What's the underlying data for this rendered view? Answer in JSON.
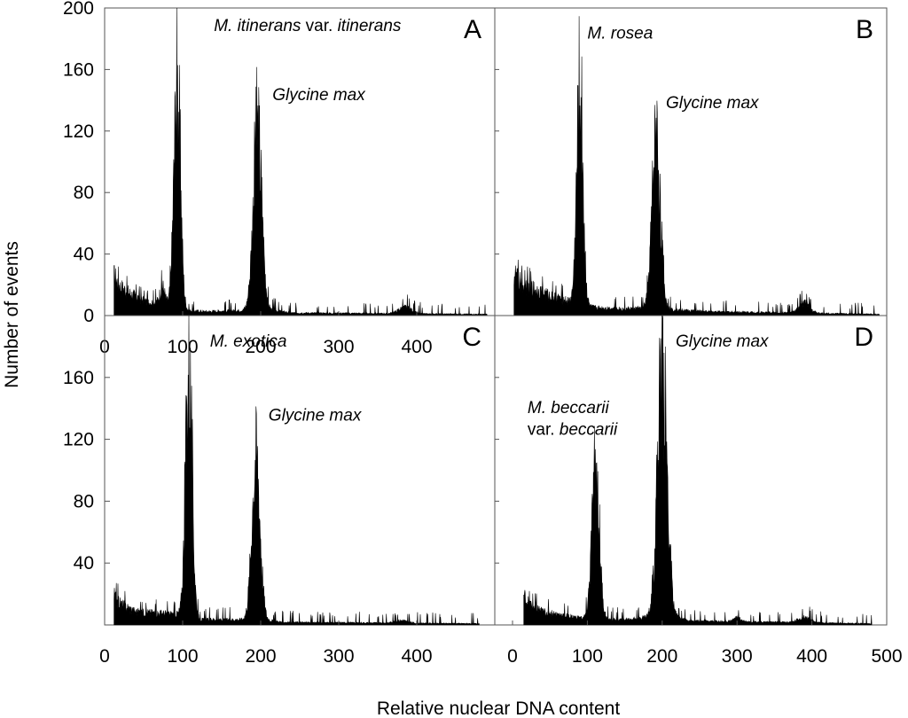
{
  "axes": {
    "xlabel": "Relative nuclear DNA content",
    "ylabel": "Number of events"
  },
  "chart_data": [
    {
      "type": "area",
      "panel": "A",
      "xlim": [
        0,
        500
      ],
      "ylim": [
        0,
        200
      ],
      "x_ticks": [
        "0",
        "100",
        "200",
        "300",
        "400"
      ],
      "y_ticks": [
        "0",
        "40",
        "80",
        "120",
        "160",
        "200"
      ],
      "annotations": [
        {
          "x": 140,
          "y": 185,
          "parts": [
            {
              "text": "M. itinerans",
              "italic": true
            },
            {
              "text": " var. ",
              "italic": false
            },
            {
              "text": "itinerans",
              "italic": true
            }
          ]
        },
        {
          "x": 215,
          "y": 140,
          "parts": [
            {
              "text": "Glycine max",
              "italic": true
            }
          ]
        }
      ],
      "series": [
        {
          "x_range": [
            12,
            490
          ],
          "baseline": [
            [
              12,
              30
            ],
            [
              20,
              22
            ],
            [
              35,
              16
            ],
            [
              55,
              10
            ],
            [
              75,
              10
            ],
            [
              87,
              6
            ],
            [
              100,
              4
            ],
            [
              130,
              3
            ],
            [
              180,
              4
            ],
            [
              215,
              4
            ],
            [
              240,
              2
            ],
            [
              490,
              1
            ]
          ],
          "peaks": [
            {
              "center": 93,
              "height": 172,
              "width": 4.2
            },
            {
              "center": 196,
              "height": 136,
              "width": 5.5
            },
            {
              "center": 74,
              "height": 12,
              "width": 3
            },
            {
              "center": 385,
              "height": 5,
              "width": 8
            }
          ]
        }
      ]
    },
    {
      "type": "area",
      "panel": "B",
      "xlim": [
        0,
        500
      ],
      "ylim": [
        0,
        200
      ],
      "annotations": [
        {
          "x": 100,
          "y": 180,
          "parts": [
            {
              "text": "M. rosea",
              "italic": true
            }
          ]
        },
        {
          "x": 205,
          "y": 135,
          "parts": [
            {
              "text": "Glycine max",
              "italic": true
            }
          ]
        }
      ],
      "series": [
        {
          "x_range": [
            2,
            490
          ],
          "baseline": [
            [
              2,
              32
            ],
            [
              12,
              24
            ],
            [
              30,
              20
            ],
            [
              50,
              15
            ],
            [
              80,
              10
            ],
            [
              90,
              8
            ],
            [
              110,
              6
            ],
            [
              150,
              5
            ],
            [
              185,
              6
            ],
            [
              225,
              4
            ],
            [
              260,
              3
            ],
            [
              490,
              1
            ]
          ],
          "peaks": [
            {
              "center": 90,
              "height": 165,
              "width": 4.2
            },
            {
              "center": 192,
              "height": 130,
              "width": 5.5
            },
            {
              "center": 390,
              "height": 8,
              "width": 7
            }
          ]
        }
      ]
    },
    {
      "type": "area",
      "panel": "C",
      "xlim": [
        0,
        500
      ],
      "ylim": [
        0,
        200
      ],
      "x_ticks": [
        "0",
        "100",
        "200",
        "300",
        "400"
      ],
      "y_ticks": [
        "40",
        "80",
        "120",
        "160"
      ],
      "annotations": [
        {
          "x": 135,
          "y": 180,
          "parts": [
            {
              "text": "M. exotica",
              "italic": true
            }
          ]
        },
        {
          "x": 210,
          "y": 132,
          "parts": [
            {
              "text": "Glycine max",
              "italic": true
            }
          ]
        }
      ],
      "series": [
        {
          "x_range": [
            12,
            480
          ],
          "baseline": [
            [
              12,
              22
            ],
            [
              20,
              16
            ],
            [
              40,
              10
            ],
            [
              70,
              9
            ],
            [
              100,
              8
            ],
            [
              120,
              4
            ],
            [
              160,
              4
            ],
            [
              200,
              4
            ],
            [
              230,
              2
            ],
            [
              480,
              1
            ]
          ],
          "peaks": [
            {
              "center": 108,
              "height": 190,
              "width": 4.2
            },
            {
              "center": 194,
              "height": 125,
              "width": 5.2
            },
            {
              "center": 380,
              "height": 2,
              "width": 8
            }
          ]
        }
      ]
    },
    {
      "type": "area",
      "panel": "D",
      "xlim": [
        0,
        500
      ],
      "ylim": [
        0,
        200
      ],
      "x_ticks": [
        "0",
        "100",
        "200",
        "300",
        "400",
        "500"
      ],
      "annotations": [
        {
          "x": 218,
          "y": 180,
          "parts": [
            {
              "text": "Glycine max",
              "italic": true
            }
          ]
        },
        {
          "x": 20,
          "y": 137,
          "parts": [
            {
              "text": "M. beccarii",
              "italic": true
            }
          ]
        },
        {
          "x": 20,
          "y": 123,
          "parts": [
            {
              "text": "var. ",
              "italic": false
            },
            {
              "text": "beccarii",
              "italic": true
            }
          ]
        }
      ],
      "series": [
        {
          "x_range": [
            15,
            480
          ],
          "baseline": [
            [
              15,
              22
            ],
            [
              22,
              16
            ],
            [
              40,
              10
            ],
            [
              60,
              8
            ],
            [
              80,
              6
            ],
            [
              95,
              5
            ],
            [
              120,
              4
            ],
            [
              150,
              4
            ],
            [
              180,
              6
            ],
            [
              215,
              6
            ],
            [
              240,
              3
            ],
            [
              480,
              1
            ]
          ],
          "peaks": [
            {
              "center": 111,
              "height": 110,
              "width": 5
            },
            {
              "center": 200,
              "height": 190,
              "width": 6.3
            },
            {
              "center": 300,
              "height": 3,
              "width": 5
            },
            {
              "center": 390,
              "height": 4,
              "width": 8
            }
          ]
        }
      ]
    }
  ]
}
